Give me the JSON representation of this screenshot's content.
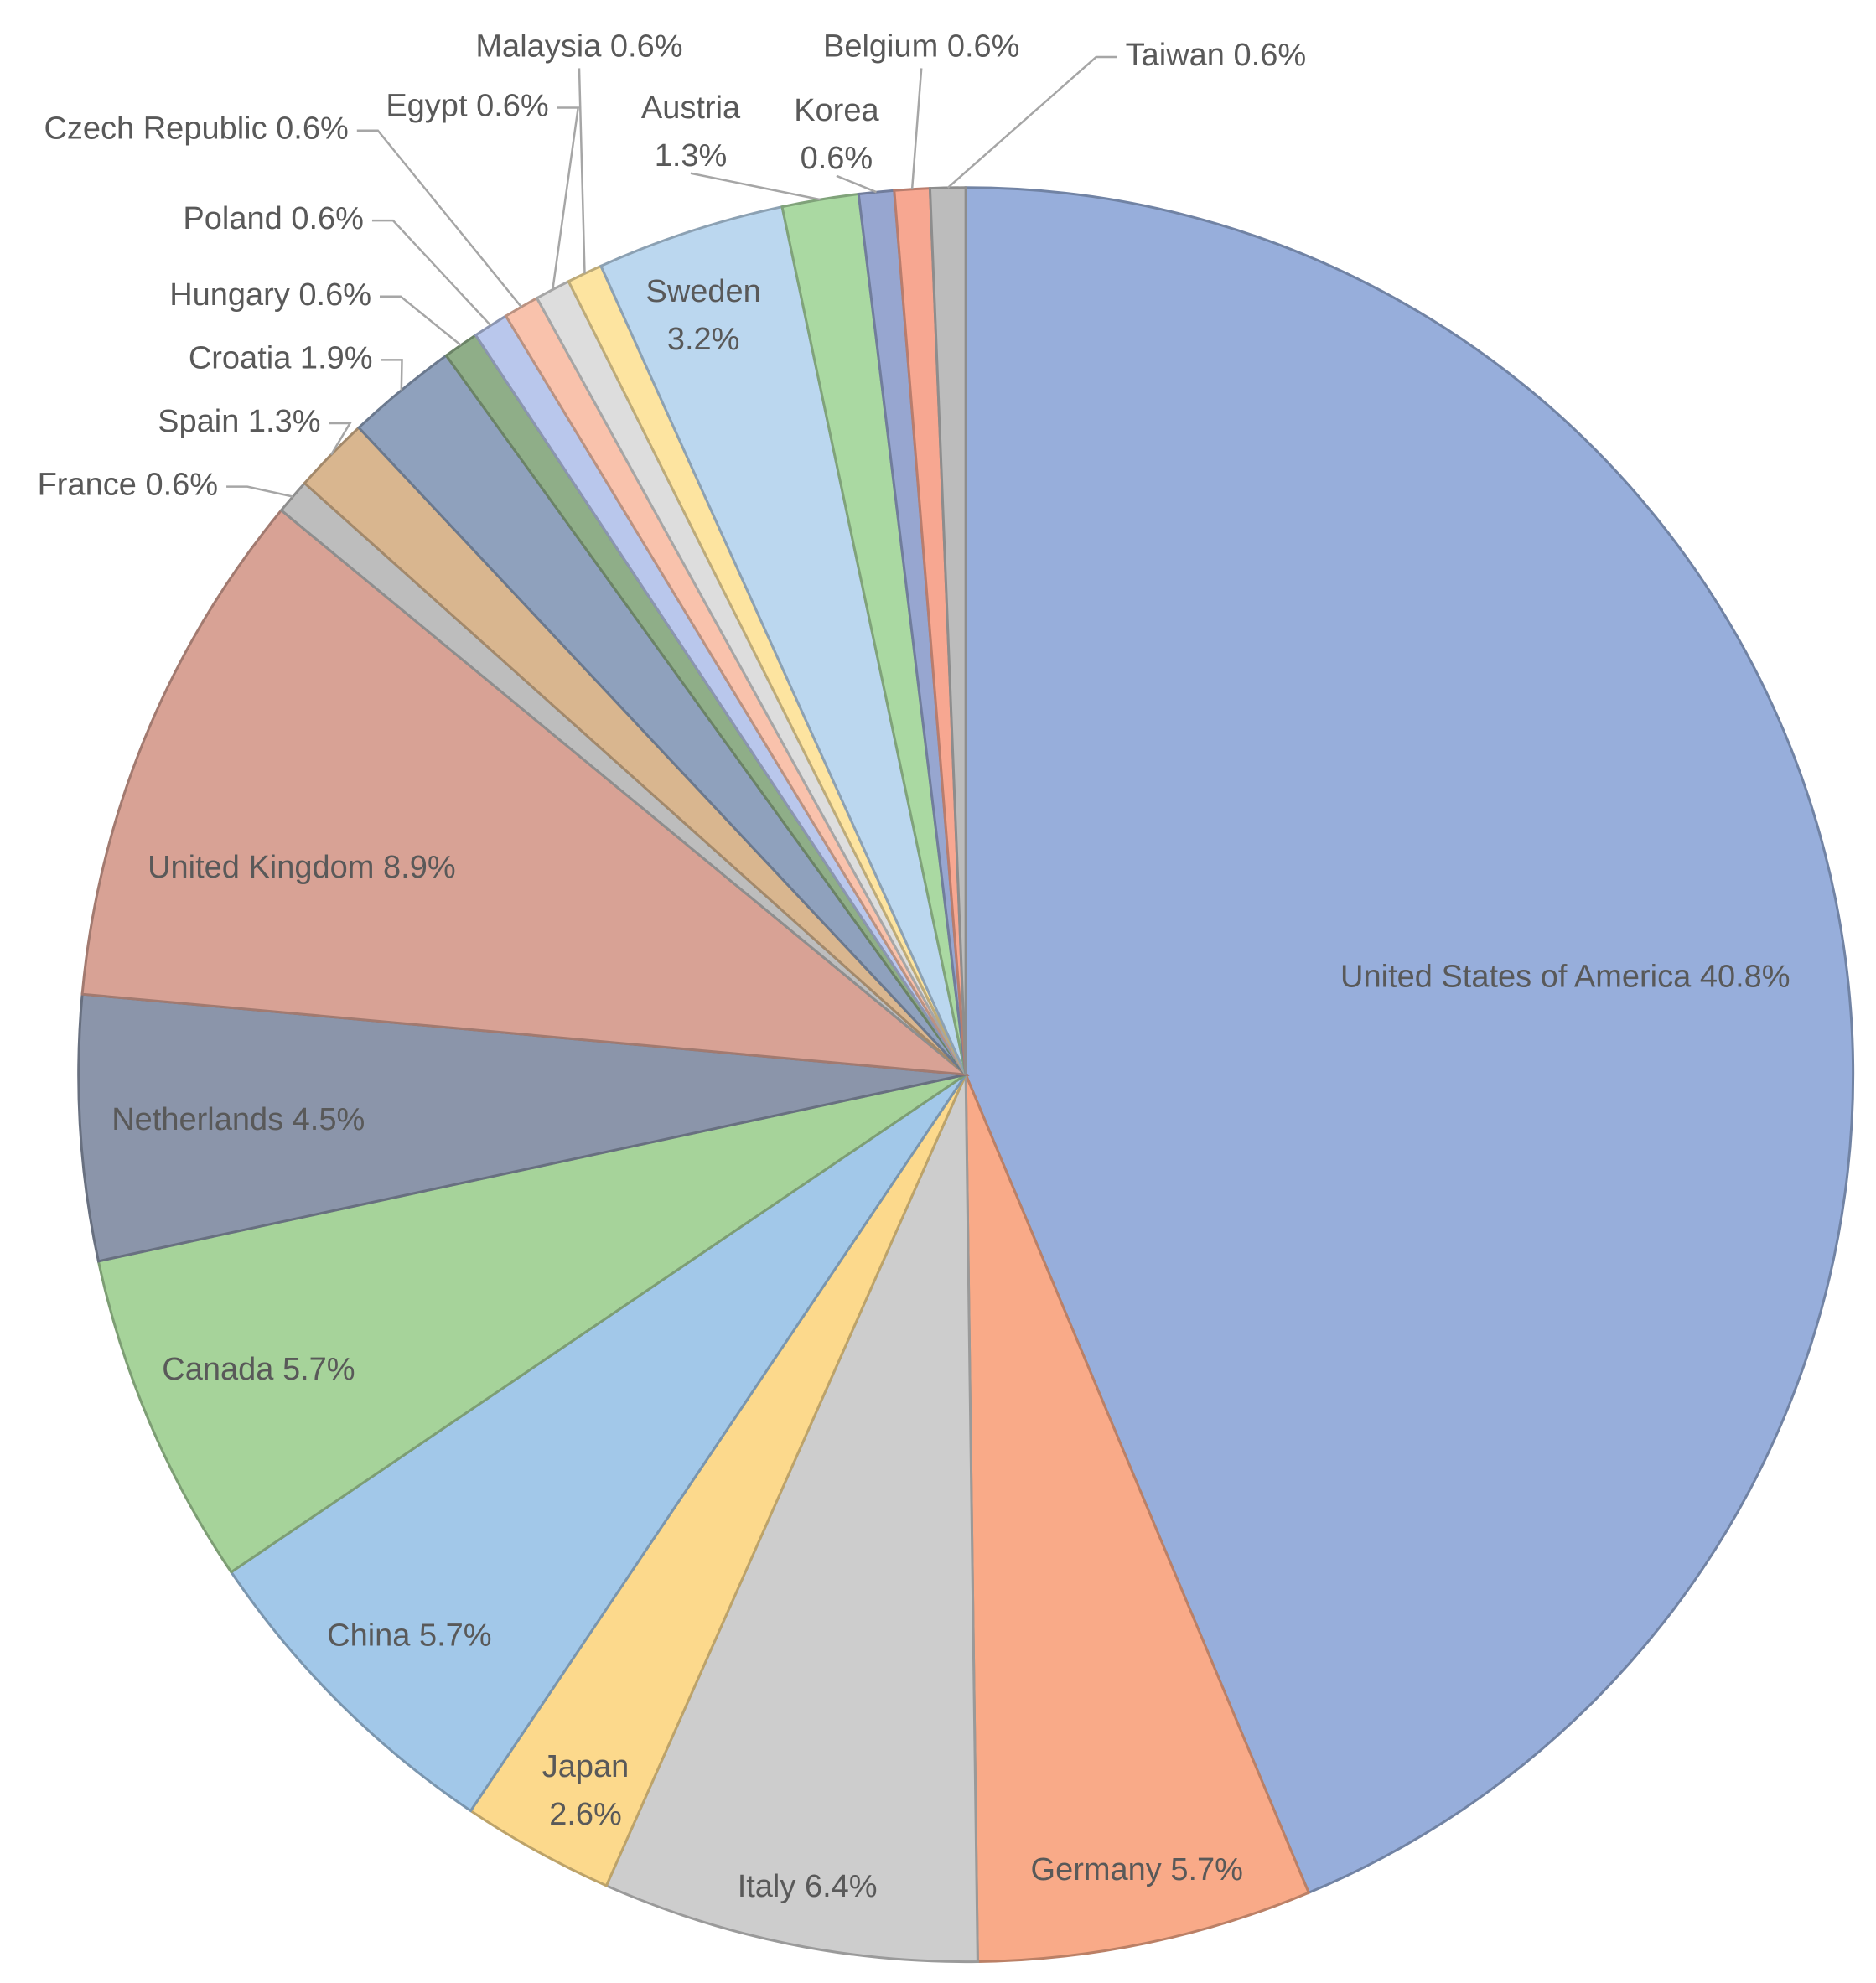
{
  "chart_data": {
    "type": "pie",
    "categories": [
      "United States of America",
      "Germany",
      "Italy",
      "Japan",
      "China",
      "Canada",
      "Netherlands",
      "United Kingdom",
      "France",
      "Spain",
      "Croatia",
      "Hungary",
      "Poland",
      "Czech Republic",
      "Egypt",
      "Malaysia",
      "Sweden",
      "Austria",
      "Korea",
      "Belgium",
      "Taiwan"
    ],
    "values": [
      40.8,
      5.7,
      6.4,
      2.6,
      5.7,
      5.7,
      4.5,
      8.9,
      0.6,
      1.3,
      1.9,
      0.6,
      0.6,
      0.6,
      0.6,
      0.6,
      3.2,
      1.3,
      0.6,
      0.6,
      0.6
    ],
    "value_labels": [
      "40.8%",
      "5.7%",
      "6.4%",
      "2.6%",
      "5.7%",
      "5.7%",
      "4.5%",
      "8.9%",
      "0.6%",
      "1.3%",
      "1.9%",
      "0.6%",
      "0.6%",
      "0.6%",
      "0.6%",
      "0.6%",
      "3.2%",
      "1.3%",
      "0.6%",
      "0.6%",
      "0.6%"
    ],
    "colors": [
      "#97aedb",
      "#f9aa88",
      "#cdcdcd",
      "#fcd98c",
      "#a2c8e9",
      "#a6d39a",
      "#8b95aa",
      "#d8a295",
      "#bdbdbd",
      "#d9b68f",
      "#8fa1bd",
      "#8fae88",
      "#b9c7ec",
      "#f9c2ac",
      "#dddddd",
      "#fde4a0",
      "#bbd7ef",
      "#aad9a2",
      "#97a6d0",
      "#f7a791",
      "#bcbcbc"
    ]
  }
}
